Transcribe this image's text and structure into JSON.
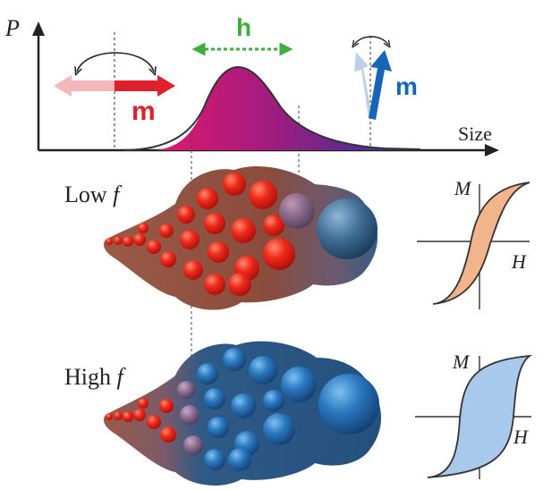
{
  "distribution": {
    "y_axis_label": "P",
    "x_axis_label": "Size",
    "field_label": "h",
    "moment_label_small": "m",
    "moment_label_large": "m"
  },
  "rows": [
    {
      "frequency_label_prefix": "Low ",
      "frequency_label_symbol": "f",
      "loop_m_label": "M",
      "loop_h_label": "H"
    },
    {
      "frequency_label_prefix": "High ",
      "frequency_label_symbol": "f",
      "loop_m_label": "M",
      "loop_h_label": "H"
    }
  ],
  "colors": {
    "axis": "#222222",
    "red_arrow": "#e0202a",
    "red_arrow_faded": "#f4b8bc",
    "green_field": "#3cae3c",
    "blue_arrow": "#1565b8",
    "blue_arrow_faded": "#b8cde6",
    "peak_left": "#d4166e",
    "peak_right": "#2a3d9a",
    "cluster_brown": "#8a4a3a",
    "cluster_blue": "#2a5a8a",
    "loop_low_fill": "#f2b48a",
    "loop_high_fill": "#a8c8ec"
  }
}
